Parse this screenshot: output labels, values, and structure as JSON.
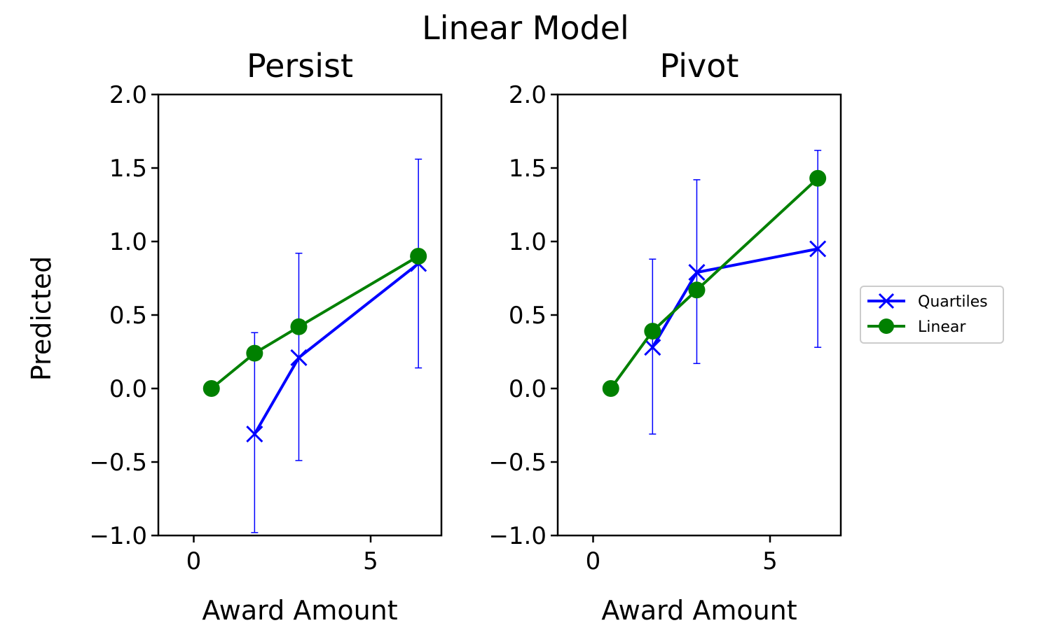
{
  "figure": {
    "title": "Linear Model"
  },
  "legend": {
    "position": "right-center",
    "entries": [
      {
        "label": "Quartiles",
        "color": "#0000ff",
        "marker": "x"
      },
      {
        "label": "Linear",
        "color": "#008000",
        "marker": "circle"
      }
    ]
  },
  "chart_data": [
    {
      "type": "line",
      "title": "Persist",
      "xlabel": "Award Amount",
      "ylabel": "Predicted",
      "xlim": [
        -1,
        7
      ],
      "ylim": [
        -1.0,
        2.0
      ],
      "xticks": [
        0,
        5
      ],
      "xtick_labels": [
        "0",
        "5"
      ],
      "yticks": [
        -1.0,
        -0.5,
        0.0,
        0.5,
        1.0,
        1.5,
        2.0
      ],
      "ytick_labels": [
        "−1.0",
        "−0.5",
        "0.0",
        "0.5",
        "1.0",
        "1.5",
        "2.0"
      ],
      "grid": false,
      "series": [
        {
          "name": "Quartiles",
          "color": "#0000ff",
          "marker": "x",
          "x": [
            1.72,
            2.97,
            6.35
          ],
          "y": [
            -0.31,
            0.21,
            0.85
          ],
          "err_low": [
            -0.98,
            -0.49,
            0.14
          ],
          "err_high": [
            0.38,
            0.92,
            1.56
          ]
        },
        {
          "name": "Linear",
          "color": "#008000",
          "marker": "circle",
          "x": [
            0.5,
            1.72,
            2.97,
            6.35
          ],
          "y": [
            0.0,
            0.24,
            0.42,
            0.9
          ]
        }
      ]
    },
    {
      "type": "line",
      "title": "Pivot",
      "xlabel": "Award Amount",
      "ylabel": "",
      "xlim": [
        -1,
        7
      ],
      "ylim": [
        -1.0,
        2.0
      ],
      "xticks": [
        0,
        5
      ],
      "xtick_labels": [
        "0",
        "5"
      ],
      "yticks": [
        -1.0,
        -0.5,
        0.0,
        0.5,
        1.0,
        1.5,
        2.0
      ],
      "ytick_labels": [
        "−1.0",
        "−0.5",
        "0.0",
        "0.5",
        "1.0",
        "1.5",
        "2.0"
      ],
      "grid": false,
      "series": [
        {
          "name": "Quartiles",
          "color": "#0000ff",
          "marker": "x",
          "x": [
            1.68,
            2.93,
            6.35
          ],
          "y": [
            0.28,
            0.79,
            0.95
          ],
          "err_low": [
            -0.31,
            0.17,
            0.28
          ],
          "err_high": [
            0.88,
            1.42,
            1.62
          ]
        },
        {
          "name": "Linear",
          "color": "#008000",
          "marker": "circle",
          "x": [
            0.5,
            1.68,
            2.93,
            6.35
          ],
          "y": [
            0.0,
            0.39,
            0.67,
            1.43
          ]
        }
      ]
    }
  ]
}
